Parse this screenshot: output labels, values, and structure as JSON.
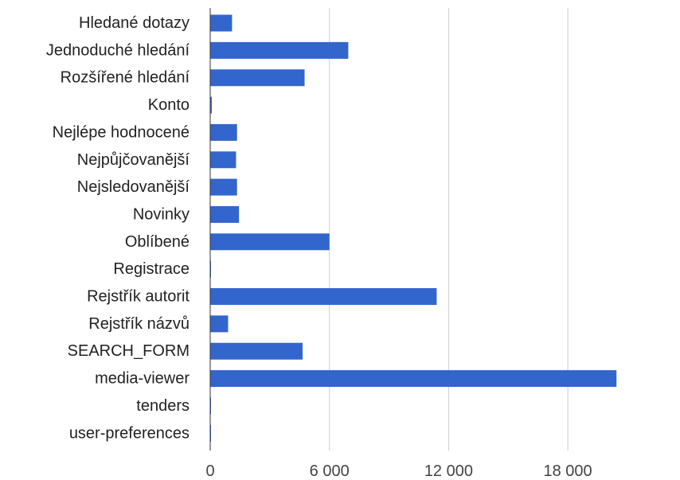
{
  "chart_data": {
    "type": "bar",
    "orientation": "horizontal",
    "title": "",
    "xlabel": "",
    "ylabel": "",
    "categories": [
      "Hledané dotazy",
      "Jednoduché hledání",
      "Rozšířené hledání",
      "Konto",
      "Nejlépe hodnocené",
      "Nejpůjčovanější",
      "Nejsledovanější",
      "Novinky",
      "Oblíbené",
      "Registrace",
      "Rejstřík autorit",
      "Rejstřík názvů",
      "SEARCH_FORM",
      "media-viewer",
      "tenders",
      "user-preferences"
    ],
    "values": [
      1100,
      6950,
      4750,
      80,
      1350,
      1300,
      1350,
      1450,
      6000,
      30,
      11400,
      900,
      4650,
      20450,
      20,
      30
    ],
    "xlim": [
      0,
      23000
    ],
    "xticks": [
      0,
      6000,
      12000,
      18000
    ],
    "xtick_labels": [
      "0",
      "6 000",
      "12 000",
      "18 000"
    ],
    "grid": true,
    "legend": "none",
    "bar_color": "#3366cc",
    "grid_color": "#cccccc"
  }
}
